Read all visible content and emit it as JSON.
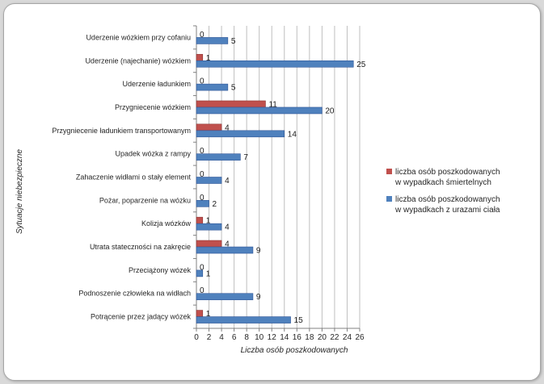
{
  "chart_data": {
    "type": "bar",
    "orientation": "horizontal",
    "title": "",
    "xlabel": "Liczba osób poszkodowanych",
    "ylabel": "Sytuacje niebezpieczne",
    "xlim": [
      0,
      26
    ],
    "xticks": [
      0,
      2,
      4,
      6,
      8,
      10,
      12,
      14,
      16,
      18,
      20,
      22,
      24,
      26
    ],
    "grid": "vertical",
    "legend_position": "right",
    "categories": [
      "Uderzenie wózkiem przy cofaniu",
      "Uderzenie (najechanie) wózkiem",
      "Uderzenie ładunkiem",
      "Przygniecenie wózkiem",
      "Przygniecenie ładunkiem transportowanym",
      "Upadek wózka z rampy",
      "Zahaczenie widłami o stały element",
      "Pożar, poparzenie na wózku",
      "Kolizja wózków",
      "Utrata stateczności na zakręcie",
      "Przeciążony wózek",
      "Podnoszenie człowieka na widłach",
      "Potrącenie przez jadący wózek"
    ],
    "series": [
      {
        "name": "liczba osób poszkodowanych w wypadkach śmiertelnych",
        "legend_lines": [
          "liczba osób poszkodowanych",
          "w wypadkach śmiertelnych"
        ],
        "color": "#c0504d",
        "values": [
          0,
          1,
          0,
          11,
          4,
          0,
          0,
          0,
          1,
          4,
          0,
          0,
          1
        ]
      },
      {
        "name": "liczba osób poszkodowanych w wypadkach z urazami ciała",
        "legend_lines": [
          "liczba osób poszkodowanych",
          "w wypadkach z urazami ciała"
        ],
        "color": "#4f81bd",
        "values": [
          5,
          25,
          5,
          20,
          14,
          7,
          4,
          2,
          4,
          9,
          1,
          9,
          15
        ]
      }
    ]
  }
}
